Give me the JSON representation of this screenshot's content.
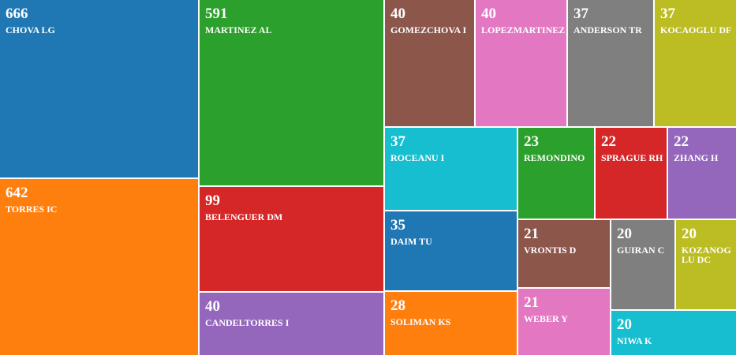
{
  "chart_data": {
    "type": "treemap",
    "items": [
      {
        "label": "CHOVA LG",
        "value": 666,
        "color": "#1f77b4"
      },
      {
        "label": "TORRES IC",
        "value": 642,
        "color": "#ff7f0e"
      },
      {
        "label": "MARTINEZ AL",
        "value": 591,
        "color": "#2ca02c"
      },
      {
        "label": "BELENGUER DM",
        "value": 99,
        "color": "#d62728"
      },
      {
        "label": "CANDELTORRES I",
        "value": 40,
        "color": "#9467bd"
      },
      {
        "label": "GOMEZCHOVA I",
        "value": 40,
        "color": "#8c564b"
      },
      {
        "label": "LOPEZMARTINEZ",
        "value": 40,
        "color": "#e377c2"
      },
      {
        "label": "ANDERSON TR",
        "value": 37,
        "color": "#7f7f7f"
      },
      {
        "label": "KOCAOGLU DF",
        "value": 37,
        "color": "#bcbd22"
      },
      {
        "label": "ROCEANU I",
        "value": 37,
        "color": "#17becf"
      },
      {
        "label": "DAIM TU",
        "value": 35,
        "color": "#1f77b4"
      },
      {
        "label": "SOLIMAN KS",
        "value": 28,
        "color": "#ff7f0e"
      },
      {
        "label": "REMONDINO",
        "value": 23,
        "color": "#2ca02c"
      },
      {
        "label": "SPRAGUE RH",
        "value": 22,
        "color": "#d62728"
      },
      {
        "label": "ZHANG H",
        "value": 22,
        "color": "#9467bd"
      },
      {
        "label": "VRONTIS D",
        "value": 21,
        "color": "#8c564b"
      },
      {
        "label": "WEBER Y",
        "value": 21,
        "color": "#e377c2"
      },
      {
        "label": "GUIRAN C",
        "value": 20,
        "color": "#7f7f7f"
      },
      {
        "label": "KOZANOGLU DC",
        "value": 20,
        "color": "#bcbd22"
      },
      {
        "label": "NIWA K",
        "value": 20,
        "color": "#17becf"
      }
    ]
  }
}
